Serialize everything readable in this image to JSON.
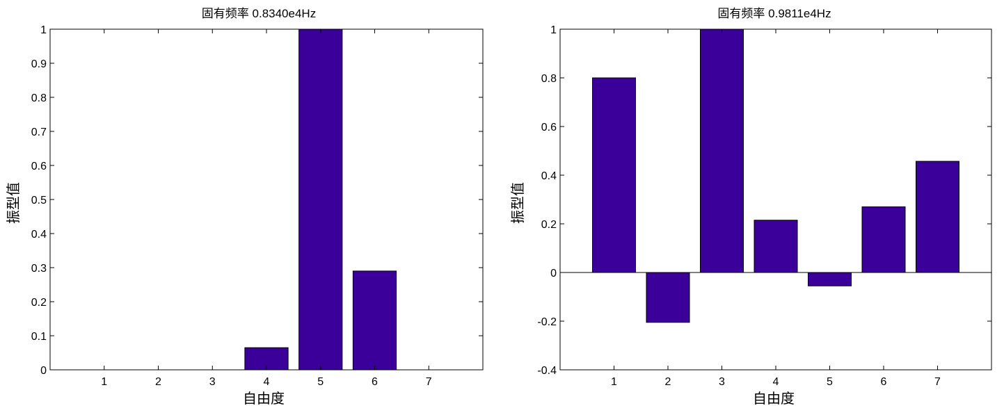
{
  "chart_data": [
    {
      "type": "bar",
      "title": "固有频率 0.8340e4Hz",
      "xlabel": "自由度",
      "ylabel": "振型值",
      "categories": [
        "1",
        "2",
        "3",
        "4",
        "5",
        "6",
        "7"
      ],
      "values": [
        0,
        0,
        0,
        0.065,
        1.0,
        0.29,
        0
      ],
      "ylim": [
        0,
        1
      ],
      "yticks": [
        "0",
        "0.1",
        "0.2",
        "0.3",
        "0.4",
        "0.5",
        "0.6",
        "0.7",
        "0.8",
        "0.9",
        "1"
      ],
      "bar_color": "#3a0099",
      "grid": false,
      "zero_line": false
    },
    {
      "type": "bar",
      "title": "固有频率 0.9811e4Hz",
      "xlabel": "自由度",
      "ylabel": "振型值",
      "categories": [
        "1",
        "2",
        "3",
        "4",
        "5",
        "6",
        "7"
      ],
      "values": [
        0.8,
        -0.205,
        1.0,
        0.215,
        -0.055,
        0.27,
        0.457
      ],
      "ylim": [
        -0.4,
        1
      ],
      "yticks": [
        "-0.4",
        "-0.2",
        "0",
        "0.2",
        "0.4",
        "0.6",
        "0.8",
        "1"
      ],
      "bar_color": "#3a0099",
      "grid": false,
      "zero_line": true
    }
  ]
}
